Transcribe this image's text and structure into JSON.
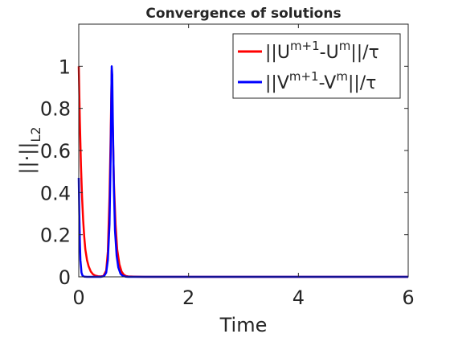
{
  "chart_data": {
    "type": "line",
    "title": "Convergence of solutions",
    "xlabel": "Time",
    "ylabel": "||·||",
    "ylabel_subscript": "L2",
    "xlim": [
      0,
      6
    ],
    "ylim": [
      0,
      1.2
    ],
    "xticks": [
      0,
      2,
      4,
      6
    ],
    "yticks": [
      0,
      0.2,
      0.4,
      0.6,
      0.8,
      1
    ],
    "xtick_labels": [
      "0",
      "2",
      "4",
      "6"
    ],
    "ytick_labels": [
      "0",
      "0.2",
      "0.4",
      "0.6",
      "0.8",
      "1"
    ],
    "grid": false,
    "legend_position": "top-right",
    "series": [
      {
        "color": "#ff0000",
        "legend": {
          "pre": "||U",
          "sup1": "m+1",
          "mid": "-U",
          "sup2": "m",
          "post": "||/τ"
        },
        "x": [
          0,
          0.02,
          0.04,
          0.06,
          0.08,
          0.1,
          0.12,
          0.15,
          0.18,
          0.22,
          0.26,
          0.3,
          0.35,
          0.4,
          0.45,
          0.5,
          0.53,
          0.56,
          0.58,
          0.6,
          0.62,
          0.64,
          0.67,
          0.7,
          0.74,
          0.78,
          0.82,
          0.86,
          0.9,
          1.0,
          1.2,
          2,
          3,
          4,
          5,
          6
        ],
        "y": [
          1.0,
          0.74,
          0.53,
          0.38,
          0.27,
          0.19,
          0.13,
          0.08,
          0.05,
          0.025,
          0.012,
          0.006,
          0.003,
          0.002,
          0.004,
          0.03,
          0.12,
          0.38,
          0.65,
          0.98,
          0.7,
          0.45,
          0.25,
          0.13,
          0.06,
          0.025,
          0.01,
          0.004,
          0.002,
          0.001,
          0.0,
          0.0,
          0.0,
          0.0,
          0.0,
          0.0
        ]
      },
      {
        "color": "#0000ff",
        "legend": {
          "pre": "||V",
          "sup1": "m+1",
          "mid": "-V",
          "sup2": "m",
          "post": "||/τ"
        },
        "x": [
          0,
          0.01,
          0.02,
          0.03,
          0.05,
          0.07,
          0.1,
          0.15,
          0.2,
          0.3,
          0.4,
          0.46,
          0.5,
          0.53,
          0.56,
          0.58,
          0.6,
          0.61,
          0.62,
          0.64,
          0.66,
          0.69,
          0.72,
          0.76,
          0.8,
          0.85,
          0.9,
          1.0,
          1.2,
          2,
          3,
          4,
          5,
          6
        ],
        "y": [
          0.47,
          0.3,
          0.17,
          0.08,
          0.02,
          0.005,
          0.001,
          0.0,
          0.0,
          0.0,
          0.0,
          0.003,
          0.02,
          0.08,
          0.25,
          0.55,
          1.0,
          0.96,
          0.75,
          0.42,
          0.22,
          0.1,
          0.045,
          0.015,
          0.005,
          0.001,
          0.0,
          0.0,
          0.0,
          0.0,
          0.0,
          0.0,
          0.0,
          0.0
        ]
      }
    ]
  }
}
